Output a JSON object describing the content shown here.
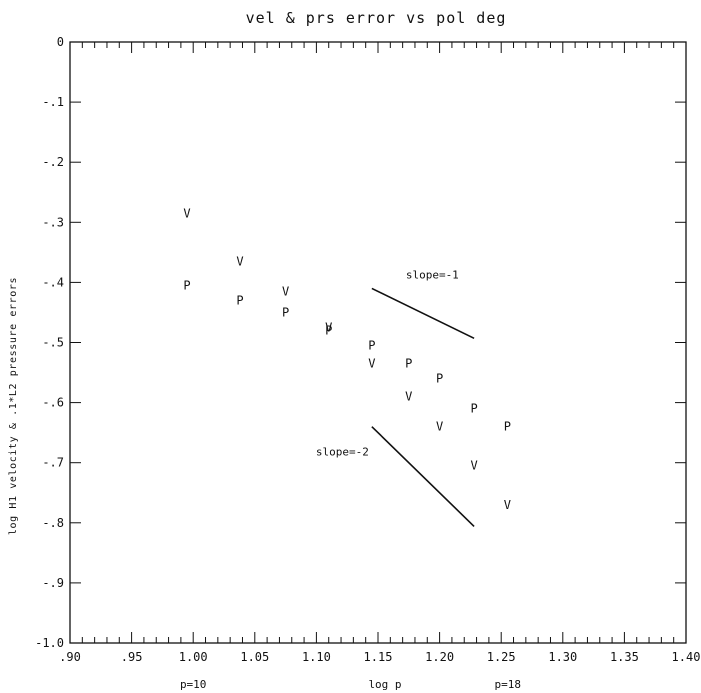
{
  "chart_data": {
    "type": "scatter",
    "title": "vel & prs error vs pol deg",
    "xlabel": "log p",
    "ylabel": "log H1 velocity & .1*L2 pressure errors",
    "xlim": [
      0.9,
      1.4
    ],
    "ylim": [
      -1.0,
      0.0
    ],
    "x_ticks": [
      ".90",
      ".95",
      "1.00",
      "1.05",
      "1.10",
      "1.15",
      "1.20",
      "1.25",
      "1.30",
      "1.35",
      "1.40"
    ],
    "y_ticks": [
      "0",
      "-.1",
      "-.2",
      "-.3",
      "-.4",
      "-.5",
      "-.6",
      "-.7",
      "-.8",
      "-.9",
      "-1.0"
    ],
    "x_annotations": [
      {
        "text": "p=10",
        "x": 1.0
      },
      {
        "text": "p=18",
        "x": 1.2553
      }
    ],
    "series": [
      {
        "marker": "V",
        "points": [
          [
            0.995,
            -0.285
          ],
          [
            1.038,
            -0.365
          ],
          [
            1.075,
            -0.415
          ],
          [
            1.11,
            -0.475
          ],
          [
            1.145,
            -0.535
          ],
          [
            1.175,
            -0.59
          ],
          [
            1.2,
            -0.64
          ],
          [
            1.228,
            -0.705
          ],
          [
            1.255,
            -0.77
          ]
        ]
      },
      {
        "marker": "P",
        "points": [
          [
            0.995,
            -0.405
          ],
          [
            1.038,
            -0.43
          ],
          [
            1.075,
            -0.45
          ],
          [
            1.11,
            -0.48
          ],
          [
            1.145,
            -0.505
          ],
          [
            1.175,
            -0.535
          ],
          [
            1.2,
            -0.56
          ],
          [
            1.228,
            -0.61
          ],
          [
            1.255,
            -0.64
          ]
        ]
      }
    ],
    "reference_lines": [
      {
        "label": "slope=-1",
        "from": [
          1.145,
          -0.41
        ],
        "to": [
          1.228,
          -0.493
        ]
      },
      {
        "label": "slope=-2",
        "from": [
          1.145,
          -0.64
        ],
        "to": [
          1.228,
          -0.806
        ]
      }
    ],
    "grid": false,
    "legend": "none"
  }
}
